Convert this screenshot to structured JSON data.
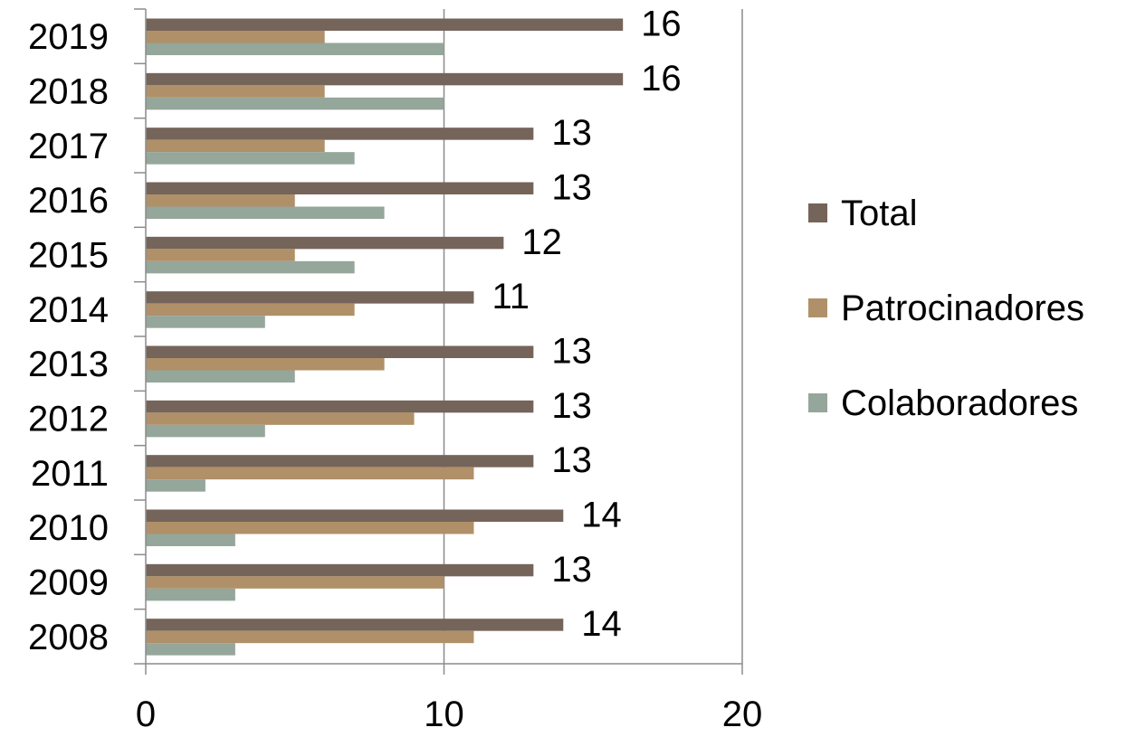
{
  "chart_data": {
    "type": "bar",
    "orientation": "horizontal",
    "categories": [
      "2019",
      "2018",
      "2017",
      "2016",
      "2015",
      "2014",
      "2013",
      "2012",
      "2011",
      "2010",
      "2009",
      "2008"
    ],
    "series": [
      {
        "name": "Total",
        "color": "#75645A",
        "values": [
          16,
          16,
          13,
          13,
          12,
          11,
          13,
          13,
          13,
          14,
          13,
          14
        ]
      },
      {
        "name": "Patrocinadores",
        "color": "#B09068",
        "values": [
          6,
          6,
          6,
          5,
          5,
          7,
          8,
          9,
          11,
          11,
          10,
          11
        ]
      },
      {
        "name": "Colaboradores",
        "color": "#95A69A",
        "values": [
          10,
          10,
          7,
          8,
          7,
          4,
          5,
          4,
          2,
          3,
          3,
          3
        ]
      }
    ],
    "data_labels_series": "Total",
    "x_ticks": [
      "0",
      "10",
      "20"
    ],
    "xlim": [
      0,
      20
    ],
    "grid": true,
    "legend_position": "right",
    "title": "",
    "xlabel": "",
    "ylabel": ""
  }
}
